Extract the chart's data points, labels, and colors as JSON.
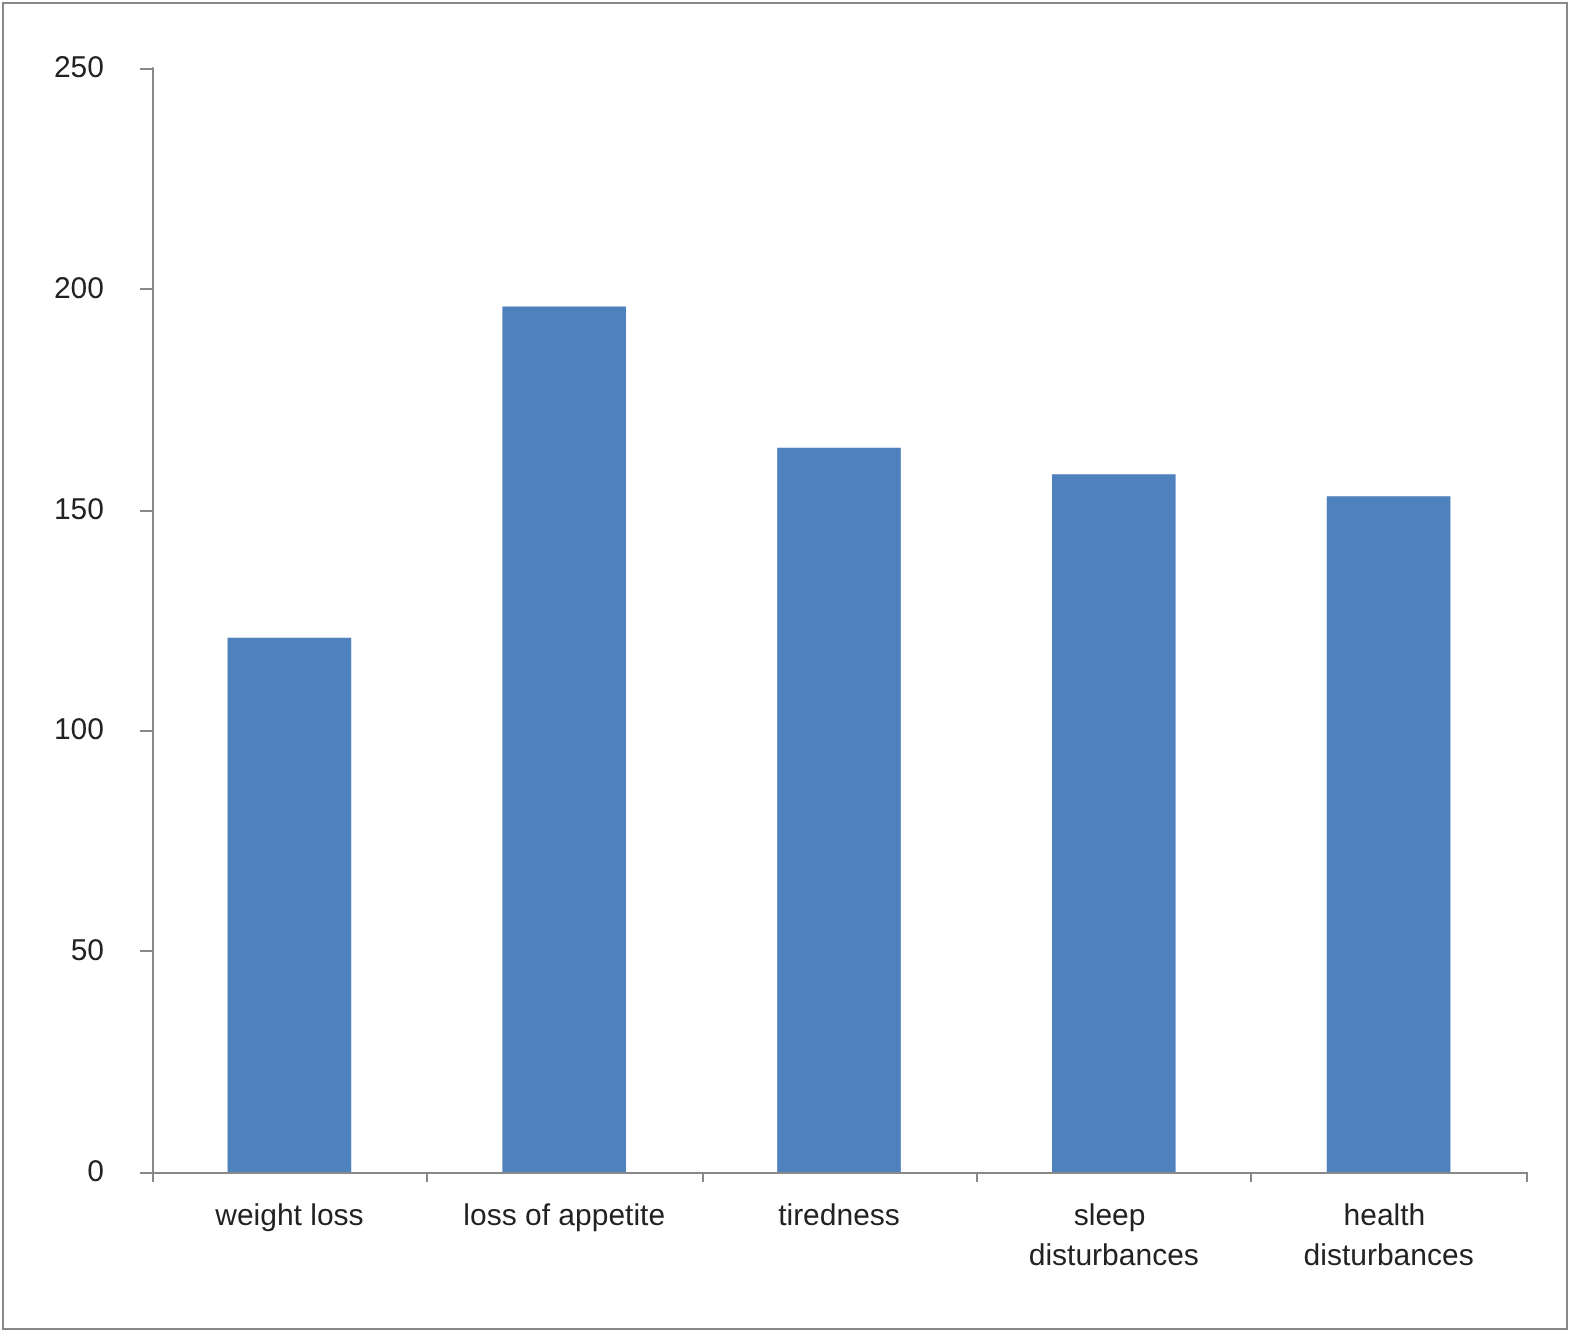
{
  "chart_data": {
    "type": "bar",
    "categories": [
      "weight loss",
      "loss of appetite",
      "tiredness",
      "sleep disturbances",
      "health disturbances"
    ],
    "values": [
      121,
      196,
      164,
      158,
      153
    ],
    "color": "#4f81bd",
    "ylim": [
      0,
      250
    ],
    "yticks": [
      0,
      50,
      100,
      150,
      200,
      250
    ],
    "grid": false
  }
}
